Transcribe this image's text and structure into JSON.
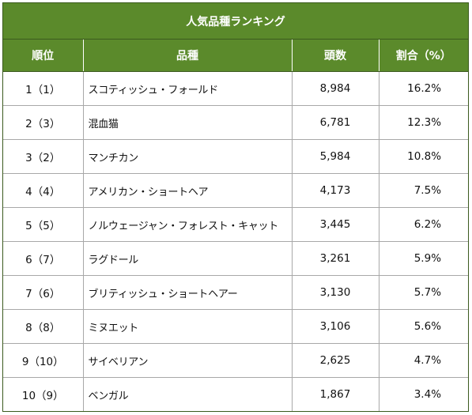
{
  "table": {
    "title": "人気品種ランキング",
    "headers": {
      "rank": "順位",
      "breed": "品種",
      "count": "頭数",
      "share": "割合（%）"
    },
    "rows": [
      {
        "rank": "1（1）",
        "breed": "スコティッシュ・フォールド",
        "count": "8,984",
        "share": "16.2%"
      },
      {
        "rank": "2（3）",
        "breed": "混血猫",
        "count": "6,781",
        "share": "12.3%"
      },
      {
        "rank": "3（2）",
        "breed": "マンチカン",
        "count": "5,984",
        "share": "10.8%"
      },
      {
        "rank": "4（4）",
        "breed": "アメリカン・ショートヘア",
        "count": "4,173",
        "share": "7.5%"
      },
      {
        "rank": "5（5）",
        "breed": "ノルウェージャン・フォレスト・キャット",
        "count": "3,445",
        "share": "6.2%"
      },
      {
        "rank": "6（7）",
        "breed": "ラグドール",
        "count": "3,261",
        "share": "5.9%"
      },
      {
        "rank": "7（6）",
        "breed": "ブリティッシュ・ショートヘアー",
        "count": "3,130",
        "share": "5.7%"
      },
      {
        "rank": "8（8）",
        "breed": "ミヌエット",
        "count": "3,106",
        "share": "5.6%"
      },
      {
        "rank": "9（10）",
        "breed": "サイベリアン",
        "count": "2,625",
        "share": "4.7%"
      },
      {
        "rank": "10（9）",
        "breed": "ベンガル",
        "count": "1,867",
        "share": "3.4%"
      }
    ]
  }
}
